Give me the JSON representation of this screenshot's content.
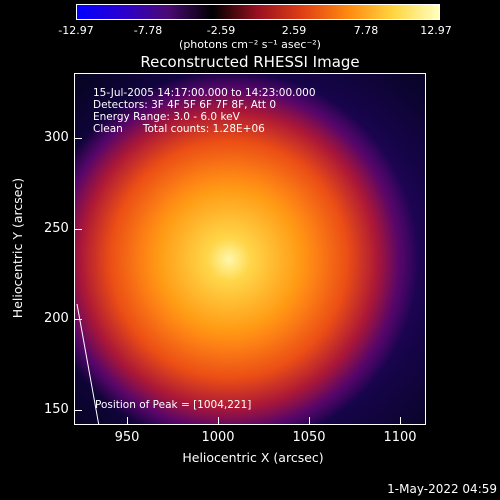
{
  "colorbar": {
    "labels": [
      "-12.97",
      "-7.78",
      "-2.59",
      "2.59",
      "7.78",
      "12.97"
    ],
    "units": "(photons cm⁻² s⁻¹ asec⁻²)",
    "colors": [
      "#0000ff",
      "#2a00d0",
      "#4a0a74",
      "#000000",
      "#9a1020",
      "#e04014",
      "#ff8a10",
      "#ffd640",
      "#ffffc0"
    ]
  },
  "title": "Reconstructed RHESSI Image",
  "info": {
    "line1": "15-Jul-2005 14:17:00.000 to 14:23:00.000",
    "line2": "Detectors: 3F 4F 5F 6F 7F 8F, Att 0",
    "line3": "Energy Range: 3.0 - 6.0 keV",
    "line4": "Clean      Total counts: 1.28E+06"
  },
  "peak": "Position of Peak = [1004,221]",
  "axes": {
    "xlabel": "Heliocentric X (arcsec)",
    "ylabel": "Heliocentric Y (arcsec)",
    "xticks": [
      "950",
      "1000",
      "1050",
      "1100"
    ],
    "yticks": [
      "300",
      "250",
      "200",
      "150"
    ]
  },
  "timestamp": "1-May-2022 04:59"
}
